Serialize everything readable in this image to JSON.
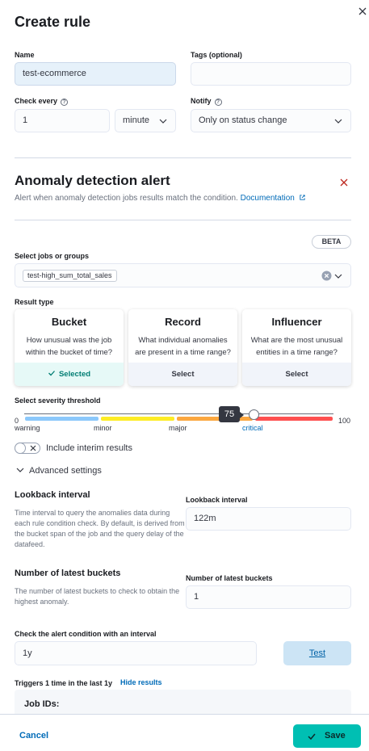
{
  "flyout": {
    "title": "Create rule"
  },
  "general": {
    "name_label": "Name",
    "name_value": "test-ecommerce",
    "tags_label": "Tags (optional)",
    "tags_value": "",
    "check_every_label": "Check every",
    "check_every_value": "1",
    "check_every_unit": "minute",
    "notify_label": "Notify",
    "notify_value": "Only on status change"
  },
  "rule_type": {
    "title": "Anomaly detection alert",
    "description": "Alert when anomaly detection jobs results match the condition.",
    "documentation_link": "Documentation",
    "beta_badge": "BETA"
  },
  "jobs": {
    "label": "Select jobs or groups",
    "selected": [
      "test-high_sum_total_sales"
    ]
  },
  "result_type": {
    "label": "Result type",
    "cards": [
      {
        "title": "Bucket",
        "description": "How unusual was the job within the bucket of time?",
        "action": "Selected",
        "selected": true
      },
      {
        "title": "Record",
        "description": "What individual anomalies are present in a time range?",
        "action": "Select",
        "selected": false
      },
      {
        "title": "Influencer",
        "description": "What are the most unusual entities in a time range?",
        "action": "Select",
        "selected": false
      }
    ]
  },
  "severity": {
    "label": "Select severity threshold",
    "min": "0",
    "max": "100",
    "value": 75,
    "value_display": "75",
    "ticks": [
      "warning",
      "minor",
      "major",
      "critical"
    ],
    "colors": {
      "warning": "#8bc8fb",
      "minor": "#fdec25",
      "major": "#fba740",
      "critical": "#fe5050"
    }
  },
  "interim": {
    "label": "Include interim results",
    "checked": false
  },
  "advanced": {
    "toggle_label": "Advanced settings",
    "lookback_title": "Lookback interval",
    "lookback_desc": "Time interval to query the anomalies data during each rule condition check. By default, is derived from the bucket span of the job and the query delay of the datafeed.",
    "lookback_field_label": "Lookback interval",
    "lookback_value": "122m",
    "buckets_title": "Number of latest buckets",
    "buckets_desc": "The number of latest buckets to check to obtain the highest anomaly.",
    "buckets_field_label": "Number of latest buckets",
    "buckets_value": "1"
  },
  "preview": {
    "label": "Check the alert condition with an interval",
    "interval_value": "1y",
    "test_button": "Test",
    "result_text": "Triggers 1 time in the last 1y",
    "hide_results": "Hide results",
    "job_ids_label": "Job IDs:"
  },
  "footer": {
    "cancel": "Cancel",
    "save": "Save"
  },
  "colors": {
    "accent": "#006bb8",
    "save": "#00bfb3",
    "danger": "#bd271e"
  }
}
